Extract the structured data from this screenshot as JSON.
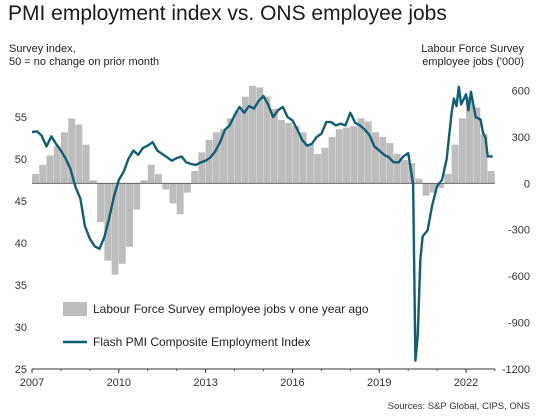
{
  "chart_data": {
    "type": "bar+line",
    "title": "PMI employment index vs. ONS employee jobs",
    "left_axis_title": [
      "Survey index,",
      "50 = no change on prior month"
    ],
    "right_axis_title": [
      "Labour Force Survey",
      "employee jobs  ('000)"
    ],
    "source": "Sources: S&P Global, CIPS, ONS",
    "x_range": [
      2007.0,
      2023.0
    ],
    "x_ticks": [
      2007,
      2010,
      2013,
      2016,
      2019,
      2022
    ],
    "ylim_left": [
      25,
      60
    ],
    "yticks_left": [
      25,
      30,
      35,
      40,
      45,
      50,
      55
    ],
    "ylim_right": [
      -1200,
      700
    ],
    "yticks_right": [
      -1200,
      -900,
      -600,
      -300,
      0,
      300,
      600
    ],
    "series": [
      {
        "name": "Labour Force Survey employee jobs v one year ago",
        "kind": "bar",
        "axis": "right",
        "color": "#bdbdbd",
        "points": [
          [
            2007.0,
            60
          ],
          [
            2007.25,
            120
          ],
          [
            2007.5,
            180
          ],
          [
            2007.75,
            240
          ],
          [
            2008.0,
            330
          ],
          [
            2008.25,
            420
          ],
          [
            2008.5,
            380
          ],
          [
            2008.75,
            250
          ],
          [
            2009.0,
            20
          ],
          [
            2009.25,
            -250
          ],
          [
            2009.5,
            -500
          ],
          [
            2009.75,
            -590
          ],
          [
            2010.0,
            -520
          ],
          [
            2010.25,
            -410
          ],
          [
            2010.5,
            -170
          ],
          [
            2010.75,
            20
          ],
          [
            2011.0,
            120
          ],
          [
            2011.25,
            60
          ],
          [
            2011.5,
            -40
          ],
          [
            2011.75,
            -130
          ],
          [
            2012.0,
            -200
          ],
          [
            2012.25,
            -60
          ],
          [
            2012.5,
            80
          ],
          [
            2012.75,
            200
          ],
          [
            2013.0,
            280
          ],
          [
            2013.25,
            330
          ],
          [
            2013.5,
            350
          ],
          [
            2013.75,
            420
          ],
          [
            2014.0,
            470
          ],
          [
            2014.25,
            560
          ],
          [
            2014.5,
            630
          ],
          [
            2014.75,
            620
          ],
          [
            2015.0,
            560
          ],
          [
            2015.25,
            480
          ],
          [
            2015.5,
            410
          ],
          [
            2015.75,
            390
          ],
          [
            2016.0,
            370
          ],
          [
            2016.25,
            330
          ],
          [
            2016.5,
            250
          ],
          [
            2016.75,
            190
          ],
          [
            2017.0,
            230
          ],
          [
            2017.25,
            300
          ],
          [
            2017.5,
            350
          ],
          [
            2017.75,
            360
          ],
          [
            2018.0,
            370
          ],
          [
            2018.25,
            420
          ],
          [
            2018.5,
            400
          ],
          [
            2018.75,
            330
          ],
          [
            2019.0,
            300
          ],
          [
            2019.25,
            260
          ],
          [
            2019.5,
            190
          ],
          [
            2019.75,
            150
          ],
          [
            2020.0,
            130
          ],
          [
            2020.25,
            30
          ],
          [
            2020.5,
            -80
          ],
          [
            2020.75,
            -60
          ],
          [
            2021.0,
            -30
          ],
          [
            2021.25,
            60
          ],
          [
            2021.5,
            250
          ],
          [
            2021.75,
            420
          ],
          [
            2022.0,
            560
          ],
          [
            2022.25,
            490
          ],
          [
            2022.5,
            320
          ],
          [
            2022.75,
            80
          ]
        ]
      },
      {
        "name": "Flash PMI Composite Employment Index",
        "kind": "line",
        "axis": "left",
        "color": "#0e5f76",
        "points": [
          [
            2007.0,
            53.2
          ],
          [
            2007.17,
            53.3
          ],
          [
            2007.33,
            52.8
          ],
          [
            2007.5,
            51.5
          ],
          [
            2007.67,
            52.7
          ],
          [
            2007.83,
            51.8
          ],
          [
            2008.0,
            51.0
          ],
          [
            2008.17,
            50.0
          ],
          [
            2008.33,
            48.8
          ],
          [
            2008.5,
            46.7
          ],
          [
            2008.67,
            45.3
          ],
          [
            2008.83,
            42.0
          ],
          [
            2009.0,
            40.5
          ],
          [
            2009.17,
            39.6
          ],
          [
            2009.33,
            39.3
          ],
          [
            2009.5,
            40.7
          ],
          [
            2009.67,
            43.0
          ],
          [
            2009.83,
            45.5
          ],
          [
            2010.0,
            47.5
          ],
          [
            2010.17,
            48.5
          ],
          [
            2010.33,
            50.0
          ],
          [
            2010.5,
            51.0
          ],
          [
            2010.67,
            50.5
          ],
          [
            2010.83,
            51.3
          ],
          [
            2011.0,
            51.6
          ],
          [
            2011.17,
            52.0
          ],
          [
            2011.33,
            51.0
          ],
          [
            2011.5,
            50.6
          ],
          [
            2011.67,
            50.2
          ],
          [
            2011.83,
            49.8
          ],
          [
            2012.0,
            50.1
          ],
          [
            2012.17,
            50.3
          ],
          [
            2012.33,
            49.6
          ],
          [
            2012.5,
            49.4
          ],
          [
            2012.67,
            49.3
          ],
          [
            2012.83,
            49.6
          ],
          [
            2013.0,
            49.8
          ],
          [
            2013.17,
            50.2
          ],
          [
            2013.33,
            50.9
          ],
          [
            2013.5,
            52.0
          ],
          [
            2013.67,
            53.5
          ],
          [
            2013.83,
            54.0
          ],
          [
            2014.0,
            55.2
          ],
          [
            2014.17,
            56.2
          ],
          [
            2014.33,
            55.5
          ],
          [
            2014.5,
            56.3
          ],
          [
            2014.67,
            56.0
          ],
          [
            2014.83,
            56.9
          ],
          [
            2015.0,
            57.5
          ],
          [
            2015.17,
            56.4
          ],
          [
            2015.33,
            55.0
          ],
          [
            2015.5,
            55.8
          ],
          [
            2015.67,
            56.2
          ],
          [
            2015.83,
            55.0
          ],
          [
            2016.0,
            54.6
          ],
          [
            2016.17,
            53.5
          ],
          [
            2016.33,
            52.3
          ],
          [
            2016.5,
            51.6
          ],
          [
            2016.67,
            51.8
          ],
          [
            2016.83,
            52.6
          ],
          [
            2017.0,
            53.0
          ],
          [
            2017.17,
            54.4
          ],
          [
            2017.33,
            54.4
          ],
          [
            2017.5,
            54.0
          ],
          [
            2017.67,
            54.2
          ],
          [
            2017.83,
            54.0
          ],
          [
            2018.0,
            55.5
          ],
          [
            2018.17,
            54.3
          ],
          [
            2018.33,
            54.0
          ],
          [
            2018.5,
            53.5
          ],
          [
            2018.67,
            52.8
          ],
          [
            2018.83,
            51.5
          ],
          [
            2019.0,
            51.0
          ],
          [
            2019.17,
            50.5
          ],
          [
            2019.33,
            50.2
          ],
          [
            2019.5,
            49.6
          ],
          [
            2019.67,
            49.6
          ],
          [
            2019.83,
            50.3
          ],
          [
            2020.0,
            50.7
          ],
          [
            2020.17,
            47.0
          ],
          [
            2020.25,
            26.0
          ],
          [
            2020.33,
            29.0
          ],
          [
            2020.42,
            38.0
          ],
          [
            2020.5,
            40.8
          ],
          [
            2020.67,
            41.5
          ],
          [
            2020.83,
            44.5
          ],
          [
            2021.0,
            46.8
          ],
          [
            2021.17,
            47.5
          ],
          [
            2021.33,
            50.0
          ],
          [
            2021.5,
            55.5
          ],
          [
            2021.58,
            57.2
          ],
          [
            2021.67,
            56.3
          ],
          [
            2021.75,
            58.6
          ],
          [
            2021.83,
            56.5
          ],
          [
            2022.0,
            57.7
          ],
          [
            2022.08,
            55.8
          ],
          [
            2022.17,
            58.0
          ],
          [
            2022.25,
            56.5
          ],
          [
            2022.33,
            55.0
          ],
          [
            2022.5,
            54.7
          ],
          [
            2022.58,
            53.2
          ],
          [
            2022.67,
            52.5
          ],
          [
            2022.75,
            50.3
          ],
          [
            2022.83,
            50.3
          ],
          [
            2022.92,
            50.3
          ]
        ]
      }
    ],
    "legend": [
      {
        "label": "Labour Force Survey employee jobs v one year ago",
        "kind": "bar"
      },
      {
        "label": "Flash PMI Composite Employment Index",
        "kind": "line"
      }
    ],
    "legend_position": "bottom-left inside",
    "grid": false
  }
}
